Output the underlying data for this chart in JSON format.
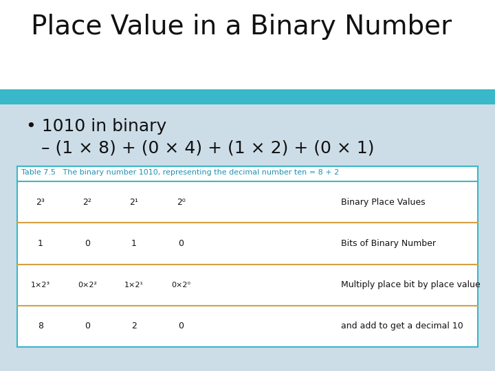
{
  "title": "Place Value in a Binary Number",
  "title_fontsize": 28,
  "title_color": "#111111",
  "bg_top_color": "#ffffff",
  "bg_bottom_color": "#ccdde8",
  "teal_stripe_color": "#38b8c8",
  "bullet_text": "1010 in binary",
  "sub_bullet_text": "– (1 × 8) + (0 × 4) + (1 × 2) + (0 × 1)",
  "bullet_fontsize": 18,
  "table_caption": "Table 7.5   The binary number 1010, representing the decimal number ten = 8 + 2",
  "table_caption_color": "#2090b0",
  "table_border_color": "#38b8c8",
  "table_line_color": "#d4a040",
  "table_bg": "#ffffff",
  "col_header_desc": "Binary Place Values",
  "col_headers": [
    "2³",
    "2²",
    "2¹",
    "2⁰"
  ],
  "row1_nums": [
    "1",
    "0",
    "1",
    "0"
  ],
  "row1_desc": "Bits of Binary Number",
  "row2_nums": [
    "1×2³",
    "0×2²",
    "1×2¹",
    "0×2⁰"
  ],
  "row2_desc": "Multiply place bit by place value",
  "row3_nums": [
    "8",
    "0",
    "2",
    "0"
  ],
  "row3_desc": "and add to get a decimal 10",
  "table_fontsize": 9,
  "caption_fontsize": 8
}
